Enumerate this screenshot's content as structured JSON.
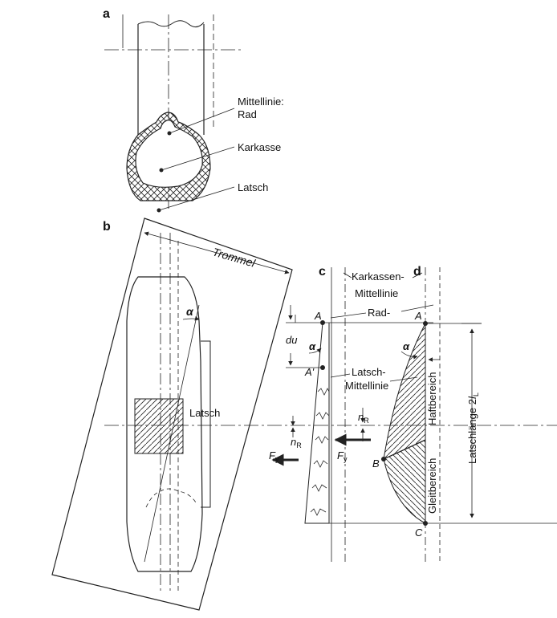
{
  "panels": {
    "a": "a",
    "b": "b",
    "c": "c",
    "d": "d"
  },
  "labels_a": {
    "centerline": "Mittellinie:",
    "centerline2": "Rad",
    "carcass": "Karkasse",
    "patch": "Latsch"
  },
  "labels_b": {
    "drum": "Trommel",
    "patch": "Latsch",
    "alpha": "α"
  },
  "labels_cd": {
    "carcass_cl_1": "Karkassen-",
    "carcass_cl_2": "Mittellinie",
    "wheel": "Rad-",
    "patch_cl_1": "Latsch-",
    "patch_cl_2": "Mittellinie",
    "pointA": "A",
    "pointA2": "A",
    "pointAprime": "A'",
    "pointB": "B",
    "pointC": "C",
    "du": "du",
    "alpha_c": "α",
    "alpha_d": "α",
    "nR": "n",
    "nR_sub": "R",
    "nR2": "n",
    "nR2_sub": "R",
    "Fy": "F",
    "Fy_sub": "y",
    "Fy2": "F",
    "Fy2_sub": "y",
    "adhesion": "Haftbereich",
    "sliding": "Gleitbereich",
    "patch_length": "Latschlänge  2",
    "patch_length_l": "l",
    "patch_length_sub": "L"
  },
  "colors": {
    "line": "#222222",
    "background": "#ffffff"
  }
}
